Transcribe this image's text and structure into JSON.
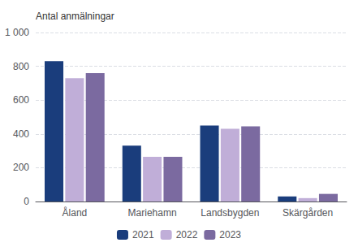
{
  "chart_data": {
    "type": "bar",
    "ylabel": "Antal anmälningar",
    "categories": [
      "Åland",
      "Mariehamn",
      "Landsbygden",
      "Skärgården"
    ],
    "series": [
      {
        "name": "2021",
        "color": "#1a3d7c",
        "values": [
          830,
          330,
          450,
          30
        ]
      },
      {
        "name": "2022",
        "color": "#c0aed8",
        "values": [
          730,
          265,
          430,
          20
        ]
      },
      {
        "name": "2023",
        "color": "#7b6aa0",
        "values": [
          760,
          265,
          445,
          45
        ]
      }
    ],
    "ylim": [
      0,
      1000
    ],
    "yticks": [
      0,
      200,
      400,
      600,
      800,
      {
        "value": 1000,
        "label": "1 000"
      }
    ],
    "grid": true,
    "legend": "bottom"
  }
}
